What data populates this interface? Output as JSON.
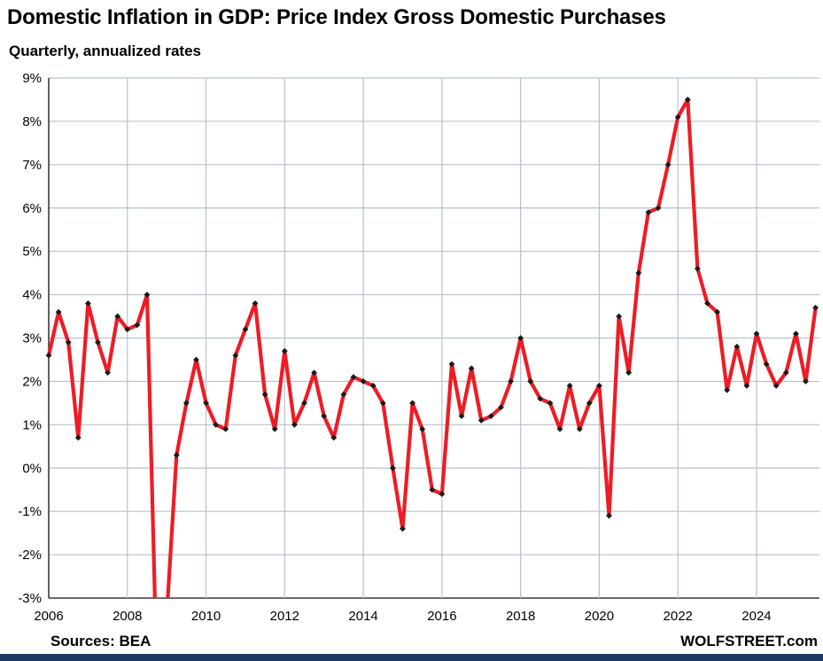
{
  "page": {
    "title": "Domestic Inflation in GDP: Price Index Gross Domestic Purchases",
    "subtitle": "Quarterly, annualized rates",
    "source_label": "Sources: BEA",
    "brand": "WOLFSTREET.com"
  },
  "colors": {
    "line": "#ee1c25",
    "marker": "#1a1a1a",
    "grid": "#b6c2d0",
    "axis": "#3a3a3a",
    "bottom_bar": "#1f3864"
  },
  "chart_data": {
    "type": "line",
    "title": "Domestic Inflation in GDP: Price Index Gross Domestic Purchases",
    "subtitle": "Quarterly, annualized rates",
    "frequency": "quarterly",
    "start_label": "2006 Q1",
    "end_label": "2025 Q3",
    "x_start": 2006,
    "xlim": [
      2006,
      2025.6
    ],
    "ylim": [
      -3,
      9
    ],
    "grid": true,
    "legend": "none",
    "y_tick_labels": [
      "9%",
      "8%",
      "7%",
      "6%",
      "5%",
      "4%",
      "3%",
      "2%",
      "1%",
      "0%",
      "-1%",
      "-2%",
      "-3%"
    ],
    "x_tick_labels": [
      "2006",
      "2008",
      "2010",
      "2012",
      "2014",
      "2016",
      "2018",
      "2020",
      "2022",
      "2024"
    ],
    "values": [
      2.6,
      3.6,
      2.9,
      0.7,
      3.8,
      2.9,
      2.2,
      3.5,
      3.2,
      3.3,
      4.0,
      -4.8,
      -3.4,
      0.3,
      1.5,
      2.5,
      1.5,
      1.0,
      0.9,
      2.6,
      3.2,
      3.8,
      1.7,
      0.9,
      2.7,
      1.0,
      1.5,
      2.2,
      1.2,
      0.7,
      1.7,
      2.1,
      2.0,
      1.9,
      1.5,
      0.0,
      -1.4,
      1.5,
      0.9,
      -0.5,
      -0.6,
      2.4,
      1.2,
      2.3,
      1.1,
      1.2,
      1.4,
      2.0,
      3.0,
      2.0,
      1.6,
      1.5,
      0.9,
      1.9,
      0.9,
      1.5,
      1.9,
      -1.1,
      3.5,
      2.2,
      4.5,
      5.9,
      6.0,
      7.0,
      8.1,
      8.5,
      4.6,
      3.8,
      3.6,
      1.8,
      2.8,
      1.9,
      3.1,
      2.4,
      1.9,
      2.2,
      3.1,
      2.0,
      3.7
    ]
  }
}
